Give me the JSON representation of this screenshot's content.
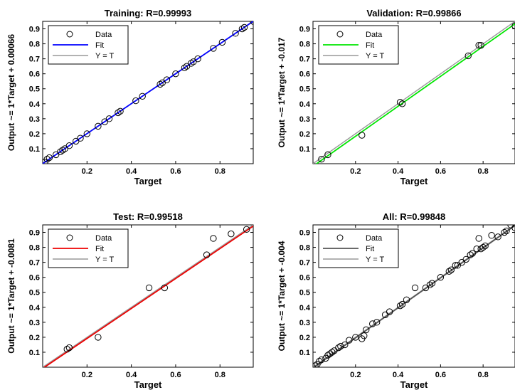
{
  "chart_data": [
    {
      "type": "scatter",
      "title": "Training: R=0.99993",
      "xlabel": "Target",
      "ylabel": "Output ~= 1*Target + 0.00066",
      "xlim": [
        0,
        0.95
      ],
      "ylim": [
        0,
        0.95
      ],
      "xticks": [
        "0.2",
        "0.4",
        "0.6",
        "0.8"
      ],
      "yticks": [
        "0.1",
        "0.2",
        "0.3",
        "0.4",
        "0.5",
        "0.6",
        "0.7",
        "0.8",
        "0.9"
      ],
      "fit_color": "#0000ff",
      "fit": {
        "slope": 1,
        "intercept": 0.00066
      },
      "legend": [
        "Data",
        "Fit",
        "Y = T"
      ],
      "legend_position": "top-left",
      "points": [
        [
          0.01,
          0.01
        ],
        [
          0.02,
          0.03
        ],
        [
          0.03,
          0.04
        ],
        [
          0.06,
          0.06
        ],
        [
          0.08,
          0.08
        ],
        [
          0.09,
          0.09
        ],
        [
          0.1,
          0.1
        ],
        [
          0.12,
          0.12
        ],
        [
          0.15,
          0.15
        ],
        [
          0.17,
          0.17
        ],
        [
          0.2,
          0.2
        ],
        [
          0.25,
          0.25
        ],
        [
          0.28,
          0.28
        ],
        [
          0.3,
          0.3
        ],
        [
          0.34,
          0.34
        ],
        [
          0.35,
          0.35
        ],
        [
          0.42,
          0.42
        ],
        [
          0.45,
          0.45
        ],
        [
          0.53,
          0.53
        ],
        [
          0.54,
          0.54
        ],
        [
          0.56,
          0.56
        ],
        [
          0.6,
          0.6
        ],
        [
          0.64,
          0.64
        ],
        [
          0.65,
          0.65
        ],
        [
          0.67,
          0.67
        ],
        [
          0.68,
          0.68
        ],
        [
          0.7,
          0.7
        ],
        [
          0.77,
          0.77
        ],
        [
          0.81,
          0.81
        ],
        [
          0.87,
          0.87
        ],
        [
          0.9,
          0.9
        ],
        [
          0.91,
          0.91
        ],
        [
          0.95,
          0.95
        ]
      ]
    },
    {
      "type": "scatter",
      "title": "Validation: R=0.99866",
      "xlabel": "Target",
      "ylabel": "Output ~= 1*Target + -0.017",
      "xlim": [
        0,
        0.95
      ],
      "ylim": [
        0,
        0.95
      ],
      "xticks": [
        "0.2",
        "0.4",
        "0.6",
        "0.8"
      ],
      "yticks": [
        "0.1",
        "0.2",
        "0.3",
        "0.4",
        "0.5",
        "0.6",
        "0.7",
        "0.8",
        "0.9"
      ],
      "fit_color": "#00e600",
      "fit": {
        "slope": 1,
        "intercept": -0.017
      },
      "legend": [
        "Data",
        "Fit",
        "Y = T"
      ],
      "legend_position": "top-left",
      "points": [
        [
          0.04,
          0.03
        ],
        [
          0.07,
          0.06
        ],
        [
          0.23,
          0.19
        ],
        [
          0.41,
          0.41
        ],
        [
          0.42,
          0.4
        ],
        [
          0.73,
          0.72
        ],
        [
          0.78,
          0.79
        ],
        [
          0.79,
          0.79
        ],
        [
          0.95,
          0.92
        ]
      ]
    },
    {
      "type": "scatter",
      "title": "Test: R=0.99518",
      "xlabel": "Target",
      "ylabel": "Output ~= 1*Target + -0.0081",
      "xlim": [
        0,
        0.95
      ],
      "ylim": [
        0,
        0.95
      ],
      "xticks": [
        "0.2",
        "0.4",
        "0.6",
        "0.8"
      ],
      "yticks": [
        "0.1",
        "0.2",
        "0.3",
        "0.4",
        "0.5",
        "0.6",
        "0.7",
        "0.8",
        "0.9"
      ],
      "fit_color": "#ee0000",
      "fit": {
        "slope": 1,
        "intercept": -0.0081
      },
      "legend": [
        "Data",
        "Fit",
        "Y = T"
      ],
      "legend_position": "top-left",
      "points": [
        [
          0.11,
          0.12
        ],
        [
          0.12,
          0.13
        ],
        [
          0.25,
          0.2
        ],
        [
          0.48,
          0.53
        ],
        [
          0.55,
          0.53
        ],
        [
          0.74,
          0.75
        ],
        [
          0.77,
          0.86
        ],
        [
          0.85,
          0.89
        ],
        [
          0.92,
          0.92
        ]
      ]
    },
    {
      "type": "scatter",
      "title": "All: R=0.99848",
      "xlabel": "Target",
      "ylabel": "Output ~= 1*Target + -0.004",
      "xlim": [
        0,
        0.95
      ],
      "ylim": [
        0,
        0.95
      ],
      "xticks": [
        "0.2",
        "0.4",
        "0.6",
        "0.8"
      ],
      "yticks": [
        "0.1",
        "0.2",
        "0.3",
        "0.4",
        "0.5",
        "0.6",
        "0.7",
        "0.8",
        "0.9"
      ],
      "fit_color": "#555555",
      "fit": {
        "slope": 1,
        "intercept": -0.004
      },
      "legend": [
        "Data",
        "Fit",
        "Y = T"
      ],
      "legend_position": "top-left",
      "points": [
        [
          0.01,
          0.01
        ],
        [
          0.02,
          0.02
        ],
        [
          0.03,
          0.04
        ],
        [
          0.04,
          0.05
        ],
        [
          0.06,
          0.06
        ],
        [
          0.07,
          0.08
        ],
        [
          0.08,
          0.09
        ],
        [
          0.09,
          0.1
        ],
        [
          0.1,
          0.11
        ],
        [
          0.12,
          0.13
        ],
        [
          0.13,
          0.14
        ],
        [
          0.15,
          0.15
        ],
        [
          0.17,
          0.18
        ],
        [
          0.2,
          0.2
        ],
        [
          0.23,
          0.19
        ],
        [
          0.24,
          0.21
        ],
        [
          0.25,
          0.25
        ],
        [
          0.28,
          0.29
        ],
        [
          0.3,
          0.3
        ],
        [
          0.34,
          0.35
        ],
        [
          0.36,
          0.37
        ],
        [
          0.41,
          0.41
        ],
        [
          0.42,
          0.42
        ],
        [
          0.44,
          0.45
        ],
        [
          0.48,
          0.53
        ],
        [
          0.53,
          0.53
        ],
        [
          0.55,
          0.55
        ],
        [
          0.56,
          0.56
        ],
        [
          0.6,
          0.6
        ],
        [
          0.64,
          0.64
        ],
        [
          0.65,
          0.65
        ],
        [
          0.67,
          0.68
        ],
        [
          0.68,
          0.68
        ],
        [
          0.7,
          0.7
        ],
        [
          0.72,
          0.72
        ],
        [
          0.74,
          0.75
        ],
        [
          0.75,
          0.76
        ],
        [
          0.77,
          0.79
        ],
        [
          0.78,
          0.86
        ],
        [
          0.79,
          0.79
        ],
        [
          0.8,
          0.8
        ],
        [
          0.81,
          0.81
        ],
        [
          0.84,
          0.88
        ],
        [
          0.87,
          0.87
        ],
        [
          0.9,
          0.9
        ],
        [
          0.91,
          0.91
        ],
        [
          0.93,
          0.95
        ],
        [
          0.95,
          0.93
        ]
      ]
    }
  ]
}
